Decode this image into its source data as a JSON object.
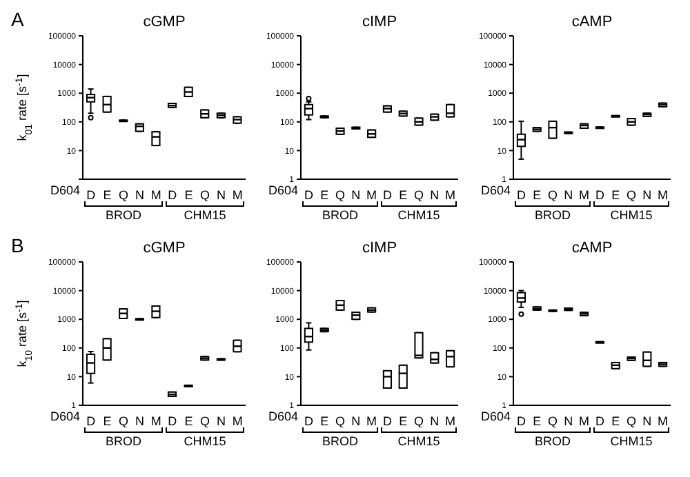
{
  "chart_data": [
    {
      "type": "box",
      "title": "cGMP",
      "ylabel": "k$_{01}$ rate [s$^{-1}$]",
      "color": "#000000",
      "log": true,
      "ylim": [
        1,
        100000
      ],
      "yticks": [
        {
          "value": 1,
          "label": null
        },
        10,
        100,
        1000,
        10000,
        100000
      ],
      "categories": [
        "D",
        "E",
        "Q",
        "N",
        "M",
        "D",
        "E",
        "Q",
        "N",
        "M"
      ],
      "annotations": [
        "A",
        "D604",
        "BROD",
        "CHM15"
      ],
      "boxes": [
        {
          "low": 200,
          "q1": 500,
          "median": 700,
          "q3": 900,
          "high": 1400,
          "outliers": [
            140
          ]
        },
        {
          "low": 220,
          "q1": 220,
          "median": 400,
          "q3": 770,
          "high": 770
        },
        {
          "low": 105,
          "q1": 105,
          "median": 110,
          "q3": 115,
          "high": 115
        },
        {
          "low": 47,
          "q1": 47,
          "median": 70,
          "q3": 85,
          "high": 85
        },
        {
          "low": 15,
          "q1": 15,
          "median": 30,
          "q3": 45,
          "high": 45
        },
        {
          "low": 320,
          "q1": 320,
          "median": 370,
          "q3": 440,
          "high": 440
        },
        {
          "low": 770,
          "q1": 770,
          "median": 1100,
          "q3": 1600,
          "high": 1600
        },
        {
          "low": 140,
          "q1": 140,
          "median": 190,
          "q3": 260,
          "high": 260
        },
        {
          "low": 140,
          "q1": 140,
          "median": 170,
          "q3": 200,
          "high": 200
        },
        {
          "low": 90,
          "q1": 90,
          "median": 120,
          "q3": 150,
          "high": 150
        }
      ]
    },
    {
      "type": "box",
      "title": "cIMP",
      "color": "#000000",
      "log": true,
      "ylim": [
        1,
        100000
      ],
      "yticks": [
        1,
        10,
        100,
        1000,
        10000,
        100000
      ],
      "categories": [
        "D",
        "E",
        "Q",
        "N",
        "M",
        "D",
        "E",
        "Q",
        "N",
        "M"
      ],
      "annotations": [
        "D604",
        "BROD",
        "CHM15"
      ],
      "boxes": [
        {
          "low": 120,
          "q1": 175,
          "median": 290,
          "q3": 400,
          "high": 500,
          "outliers": [
            650
          ]
        },
        {
          "low": 140,
          "q1": 140,
          "median": 150,
          "q3": 160,
          "high": 160
        },
        {
          "low": 37,
          "q1": 37,
          "median": 48,
          "q3": 60,
          "high": 60
        },
        {
          "low": 57,
          "q1": 57,
          "median": 60,
          "q3": 65,
          "high": 65
        },
        {
          "low": 29,
          "q1": 29,
          "median": 38,
          "q3": 52,
          "high": 52
        },
        {
          "low": 220,
          "q1": 220,
          "median": 290,
          "q3": 360,
          "high": 360
        },
        {
          "low": 160,
          "q1": 160,
          "median": 195,
          "q3": 235,
          "high": 235
        },
        {
          "low": 77,
          "q1": 77,
          "median": 100,
          "q3": 135,
          "high": 135
        },
        {
          "low": 115,
          "q1": 115,
          "median": 150,
          "q3": 185,
          "high": 185
        },
        {
          "low": 150,
          "q1": 150,
          "median": 200,
          "q3": 400,
          "high": 400
        }
      ]
    },
    {
      "type": "box",
      "title": "cAMP",
      "color": "#000000",
      "log": true,
      "ylim": [
        1,
        100000
      ],
      "yticks": [
        1,
        10,
        100,
        1000,
        10000,
        100000
      ],
      "categories": [
        "D",
        "E",
        "Q",
        "N",
        "M",
        "D",
        "E",
        "Q",
        "N",
        "M"
      ],
      "annotations": [
        "D604",
        "BROD",
        "CHM15"
      ],
      "boxes": [
        {
          "low": 5,
          "q1": 14,
          "median": 24,
          "q3": 37,
          "high": 105
        },
        {
          "low": 47,
          "q1": 47,
          "median": 55,
          "q3": 63,
          "high": 63
        },
        {
          "low": 27,
          "q1": 27,
          "median": 63,
          "q3": 105,
          "high": 105
        },
        {
          "low": 40,
          "q1": 40,
          "median": 42,
          "q3": 44,
          "high": 44
        },
        {
          "low": 60,
          "q1": 60,
          "median": 75,
          "q3": 85,
          "high": 85
        },
        {
          "low": 60,
          "q1": 60,
          "median": 63,
          "q3": 66,
          "high": 66
        },
        {
          "low": 155,
          "q1": 155,
          "median": 160,
          "q3": 165,
          "high": 165
        },
        {
          "low": 77,
          "q1": 77,
          "median": 100,
          "q3": 130,
          "high": 130
        },
        {
          "low": 155,
          "q1": 155,
          "median": 180,
          "q3": 200,
          "high": 200
        },
        {
          "low": 340,
          "q1": 340,
          "median": 400,
          "q3": 450,
          "high": 450
        }
      ]
    },
    {
      "type": "box",
      "title": "cGMP",
      "ylabel": "k$_{10}$ rate [s$^{-1}$]",
      "color": "#000000",
      "log": true,
      "ylim": [
        1,
        100000
      ],
      "yticks": [
        1,
        10,
        100,
        1000,
        10000,
        100000
      ],
      "categories": [
        "D",
        "E",
        "Q",
        "N",
        "M",
        "D",
        "E",
        "Q",
        "N",
        "M"
      ],
      "annotations": [
        "B",
        "D604",
        "BROD",
        "CHM15"
      ],
      "boxes": [
        {
          "low": 6,
          "q1": 13,
          "median": 30,
          "q3": 60,
          "high": 75
        },
        {
          "low": 38,
          "q1": 38,
          "median": 100,
          "q3": 210,
          "high": 210
        },
        {
          "low": 1070,
          "q1": 1070,
          "median": 1600,
          "q3": 2300,
          "high": 2300
        },
        {
          "low": 950,
          "q1": 950,
          "median": 1000,
          "q3": 1050,
          "high": 1050
        },
        {
          "low": 1150,
          "q1": 1150,
          "median": 1900,
          "q3": 2900,
          "high": 2900
        },
        {
          "low": 2.06,
          "q1": 2.06,
          "median": 2.4,
          "q3": 2.9,
          "high": 2.9
        },
        {
          "low": 4.6,
          "q1": 4.6,
          "median": 4.8,
          "q3": 5,
          "high": 5
        },
        {
          "low": 38,
          "q1": 38,
          "median": 44,
          "q3": 50,
          "high": 50
        },
        {
          "low": 38,
          "q1": 38,
          "median": 40,
          "q3": 42,
          "high": 42
        },
        {
          "low": 74,
          "q1": 74,
          "median": 115,
          "q3": 185,
          "high": 185
        }
      ]
    },
    {
      "type": "box",
      "title": "cIMP",
      "color": "#000000",
      "log": true,
      "ylim": [
        1,
        100000
      ],
      "yticks": [
        1,
        10,
        100,
        1000,
        10000,
        100000
      ],
      "categories": [
        "D",
        "E",
        "Q",
        "N",
        "M",
        "D",
        "E",
        "Q",
        "N",
        "M"
      ],
      "annotations": [
        "D604",
        "BROD",
        "CHM15"
      ],
      "boxes": [
        {
          "low": 85,
          "q1": 160,
          "median": 250,
          "q3": 480,
          "high": 750
        },
        {
          "low": 370,
          "q1": 370,
          "median": 420,
          "q3": 480,
          "high": 480
        },
        {
          "low": 2100,
          "q1": 2100,
          "median": 3100,
          "q3": 4500,
          "high": 4500
        },
        {
          "low": 1000,
          "q1": 1000,
          "median": 1400,
          "q3": 1750,
          "high": 1750
        },
        {
          "low": 1800,
          "q1": 1800,
          "median": 2100,
          "q3": 2500,
          "high": 2500
        },
        {
          "low": 4,
          "q1": 4,
          "median": 10,
          "q3": 16,
          "high": 16
        },
        {
          "low": 4,
          "q1": 4,
          "median": 13,
          "q3": 25,
          "high": 25
        },
        {
          "low": 45,
          "q1": 45,
          "median": 55,
          "q3": 340,
          "high": 340
        },
        {
          "low": 30,
          "q1": 30,
          "median": 40,
          "q3": 68,
          "high": 68
        },
        {
          "low": 22,
          "q1": 22,
          "median": 50,
          "q3": 80,
          "high": 80
        }
      ]
    },
    {
      "type": "box",
      "title": "cAMP",
      "color": "#000000",
      "log": true,
      "ylim": [
        1,
        100000
      ],
      "yticks": [
        1,
        10,
        100,
        1000,
        10000,
        100000
      ],
      "categories": [
        "D",
        "E",
        "Q",
        "N",
        "M",
        "D",
        "E",
        "Q",
        "N",
        "M"
      ],
      "annotations": [
        "D604",
        "BROD",
        "CHM15"
      ],
      "boxes": [
        {
          "low": 2600,
          "q1": 4000,
          "median": 5500,
          "q3": 8500,
          "high": 10000,
          "outliers": [
            1500
          ]
        },
        {
          "low": 2100,
          "q1": 2100,
          "median": 2350,
          "q3": 2700,
          "high": 2700
        },
        {
          "low": 1900,
          "q1": 1900,
          "median": 2000,
          "q3": 2100,
          "high": 2100
        },
        {
          "low": 2050,
          "q1": 2050,
          "median": 2200,
          "q3": 2450,
          "high": 2450
        },
        {
          "low": 1350,
          "q1": 1350,
          "median": 1550,
          "q3": 1750,
          "high": 1750
        },
        {
          "low": 155,
          "q1": 155,
          "median": 160,
          "q3": 165,
          "high": 165
        },
        {
          "low": 19,
          "q1": 19,
          "median": 25,
          "q3": 31,
          "high": 31
        },
        {
          "low": 37,
          "q1": 37,
          "median": 43,
          "q3": 48,
          "high": 48
        },
        {
          "low": 23,
          "q1": 23,
          "median": 37,
          "q3": 72,
          "high": 72
        },
        {
          "low": 23,
          "q1": 23,
          "median": 27,
          "q3": 31,
          "high": 31
        }
      ]
    }
  ]
}
